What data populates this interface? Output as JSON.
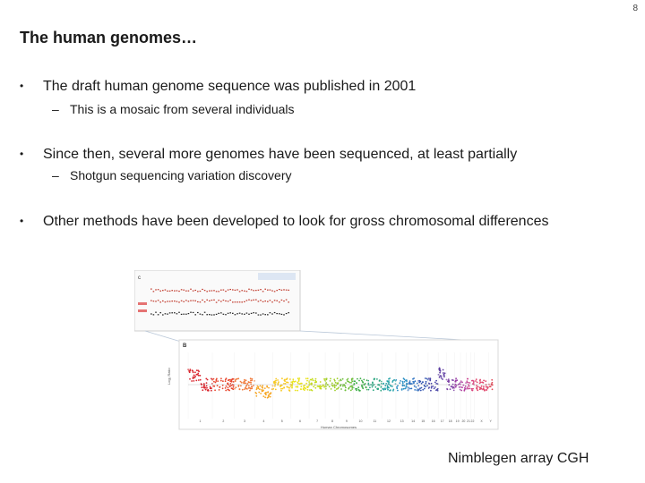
{
  "slide": {
    "number": "8",
    "title": "The human genomes…",
    "bullets": [
      {
        "text": "The draft human genome sequence was published in 2001",
        "sub": "This is a mosaic from several individuals"
      },
      {
        "text": "Since then, several more genomes have been sequenced, at least partially",
        "sub": "Shotgun sequencing variation discovery"
      },
      {
        "text": "Other methods have been developed to look for gross chromosomal differences",
        "sub": ""
      }
    ],
    "bullet_glyph": "•",
    "sub_glyph": "–",
    "caption": "Nimblegen array CGH"
  },
  "figure": {
    "panel_labels": [
      "c",
      "B"
    ],
    "ylabel": "Log₂ Ratio",
    "xlabel": "Human Chromosomes",
    "chromosomes": [
      "1",
      "2",
      "3",
      "4",
      "5",
      "6",
      "7",
      "8",
      "9",
      "10",
      "11",
      "12",
      "13",
      "14",
      "15",
      "16",
      "17",
      "18",
      "19",
      "20",
      "21",
      "22",
      "X",
      "Y"
    ],
    "colors": [
      "#d9232b",
      "#e8452c",
      "#f07a3a",
      "#f6a623",
      "#f7c81e",
      "#e9e21a",
      "#c5dc1e",
      "#9fcf2b",
      "#6fbf3a",
      "#3fae4a",
      "#2aa680",
      "#27a3a8",
      "#2a8fc4",
      "#2f73c2",
      "#3558b3",
      "#4a46a8",
      "#5b3aa0",
      "#7c3fa5",
      "#9a3ea6",
      "#b23e9e",
      "#c93f8e",
      "#d9417c",
      "#e0446a",
      "#e24a58"
    ]
  }
}
